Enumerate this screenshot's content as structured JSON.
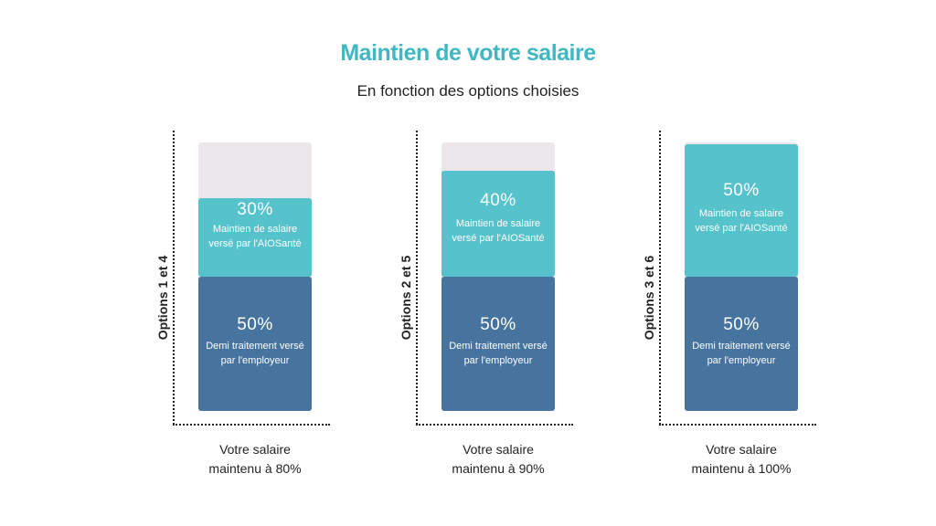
{
  "title": "Maintien de votre salaire",
  "subtitle": "En fonction des options choisies",
  "colors": {
    "title": "#3fb8c4",
    "top_segment": "#56c2cb",
    "bottom_segment": "#46749f",
    "empty": "#ebe6ea"
  },
  "chart_data": {
    "type": "bar",
    "stacked": true,
    "title": "Maintien de votre salaire",
    "subtitle": "En fonction des options choisies",
    "ylim": [
      0,
      100
    ],
    "categories": [
      "Options 1 et 4",
      "Options 2 et 5",
      "Options 3 et 6"
    ],
    "series": [
      {
        "values": [
          50,
          50,
          50
        ],
        "label": "50%",
        "description": "Demi traitement versé par l'employeur"
      },
      {
        "values": [
          30,
          40,
          50
        ],
        "description": "Maintien de salaire versé par l'AIOSanté"
      }
    ],
    "panels": [
      {
        "ylabel": "Options 1 et 4",
        "bottom": {
          "value": 50,
          "label": "50%",
          "desc1": "Demi traitement versé",
          "desc2": "par l'employeur"
        },
        "top": {
          "value": 30,
          "label": "30%",
          "desc1": "Maintien de salaire",
          "desc2": "versé par l'AIOSanté"
        },
        "caption1": "Votre salaire",
        "caption2": "maintenu à 80%"
      },
      {
        "ylabel": "Options 2 et 5",
        "bottom": {
          "value": 50,
          "label": "50%",
          "desc1": "Demi traitement versé",
          "desc2": "par l'employeur"
        },
        "top": {
          "value": 40,
          "label": "40%",
          "desc1": "Maintien de salaire",
          "desc2": "versé par l'AIOSanté"
        },
        "caption1": "Votre salaire",
        "caption2": "maintenu à 90%"
      },
      {
        "ylabel": "Options 3 et 6",
        "bottom": {
          "value": 50,
          "label": "50%",
          "desc1": "Demi traitement versé",
          "desc2": "par l'employeur"
        },
        "top": {
          "value": 50,
          "label": "50%",
          "desc1": "Maintien de salaire",
          "desc2": "versé par l'AIOSanté"
        },
        "caption1": "Votre salaire",
        "caption2": "maintenu à 100%"
      }
    ]
  }
}
